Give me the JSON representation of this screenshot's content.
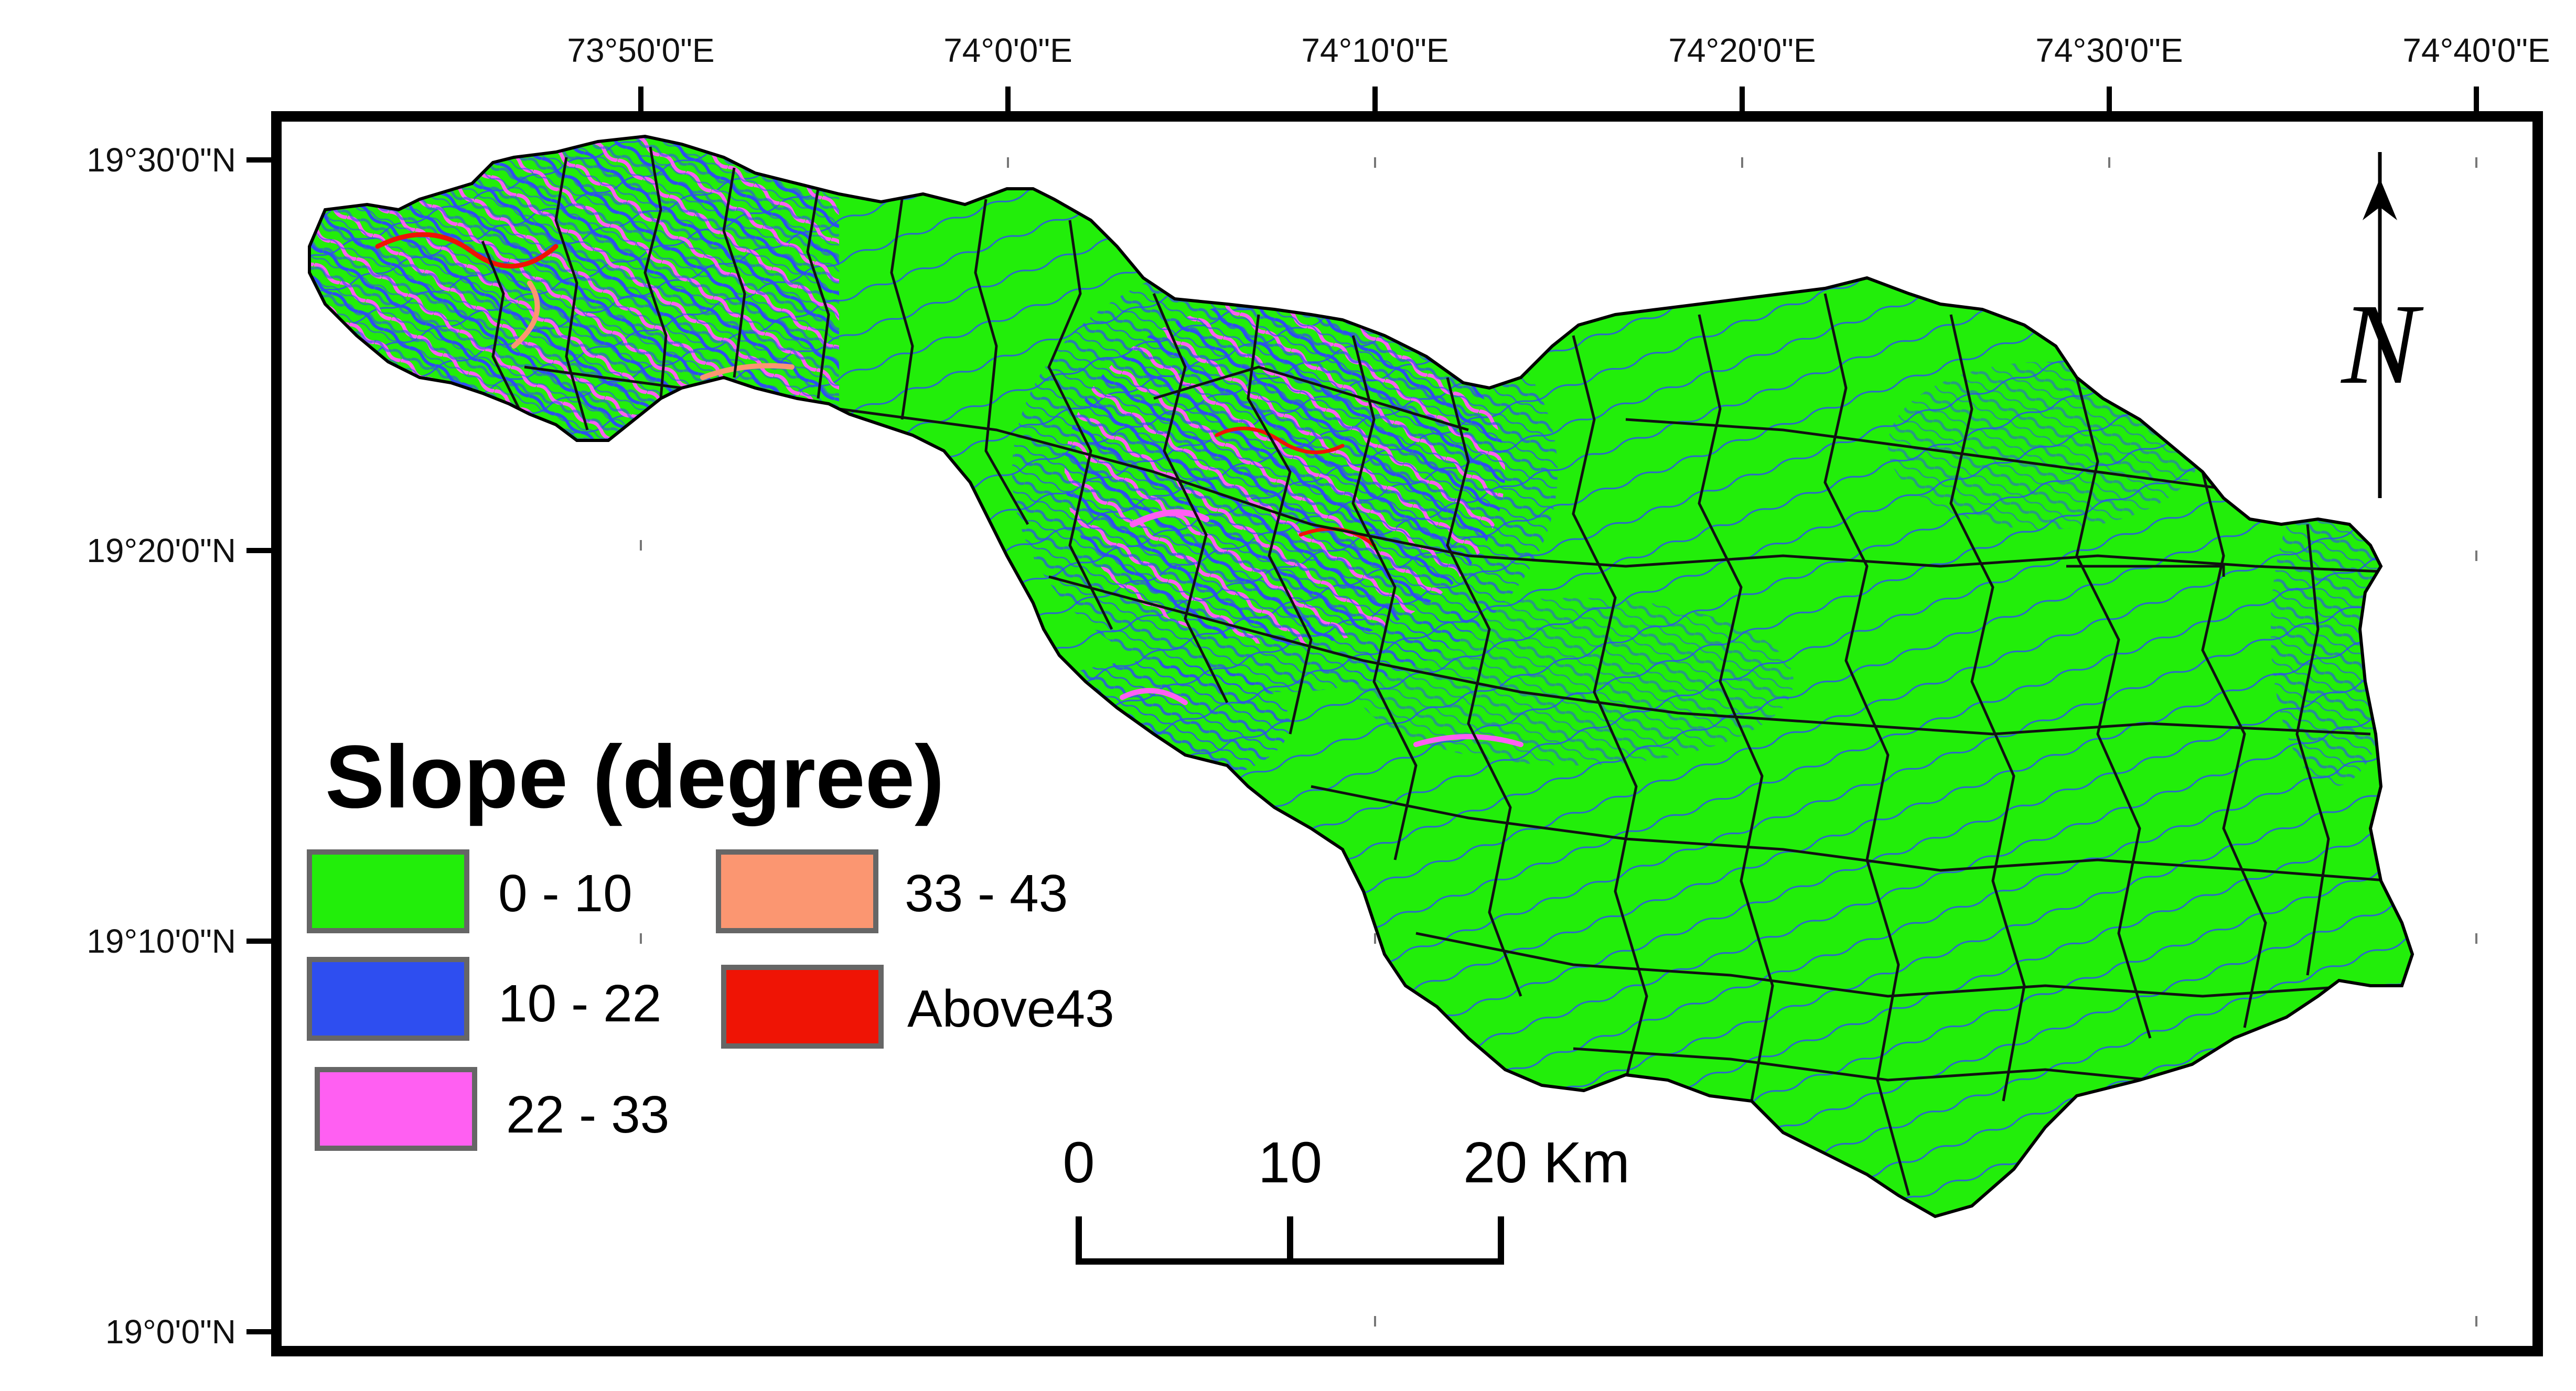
{
  "map": {
    "legend": {
      "title": "Slope (degree)",
      "classes": [
        {
          "label": "0 - 10",
          "color": "#22ee0a"
        },
        {
          "label": "10 - 22",
          "color": "#2e4ef0"
        },
        {
          "label": "22 - 33",
          "color": "#ff5ff2"
        },
        {
          "label": "33 - 43",
          "color": "#fb9671"
        },
        {
          "label": "Above43",
          "color": "#ef1405"
        }
      ]
    },
    "longitude_labels": [
      "73°50'0\"E",
      "74°0'0\"E",
      "74°10'0\"E",
      "74°20'0\"E",
      "74°30'0\"E",
      "74°40'0\"E"
    ],
    "latitude_labels": [
      "19°30'0\"N",
      "19°20'0\"N",
      "19°10'0\"N",
      "19°0'0\"N"
    ],
    "scale_bar": {
      "ticks": [
        "0",
        "10",
        "20 Km"
      ]
    },
    "north_arrow": {
      "label": "N"
    },
    "colors": {
      "frame": "#000000",
      "subbasin_boundary": "#111111",
      "background": "#ffffff"
    }
  }
}
